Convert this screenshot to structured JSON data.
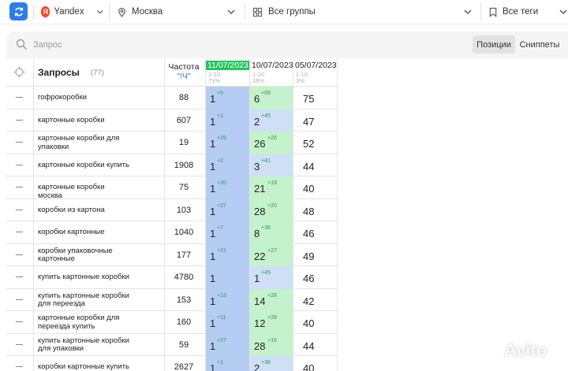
{
  "toolbar": {
    "search_engine": "Yandex",
    "search_engine_logo": "Я",
    "region": "Москва",
    "groups": "Все группы",
    "tags": "Все теги"
  },
  "search": {
    "placeholder": "Запрос"
  },
  "view_tabs": [
    {
      "label": "Позиции",
      "active": true
    },
    {
      "label": "Сниппеты",
      "active": false
    }
  ],
  "table": {
    "queries_header": "Запросы",
    "queries_count": "(77)",
    "freq_header": "Частота",
    "freq_sub": "\"!Ч\"",
    "dates": [
      {
        "date": "11/07/2023",
        "range": "1-10",
        "percent": "71%",
        "highlight": true
      },
      {
        "date": "10/07/2023",
        "range": "1-10",
        "percent": "18%",
        "highlight": false
      },
      {
        "date": "05/07/2023",
        "range": "1-10",
        "percent": "3%",
        "highlight": false
      }
    ],
    "rows": [
      {
        "query": "гофрокоробки",
        "freq": "88",
        "p1": "1",
        "d1": "+5",
        "p2": "6",
        "d2": "+69",
        "c2": "green",
        "p3": "75"
      },
      {
        "query": "картонные коробки",
        "freq": "607",
        "p1": "1",
        "d1": "+1",
        "p2": "2",
        "d2": "+45",
        "c2": "lblue",
        "p3": "47"
      },
      {
        "query": "картонные коробки для упаковки",
        "freq": "19",
        "p1": "1",
        "d1": "+25",
        "p2": "26",
        "d2": "+26",
        "c2": "green",
        "p3": "52"
      },
      {
        "query": "картонные коробки купить",
        "freq": "1908",
        "p1": "1",
        "d1": "+2",
        "p2": "3",
        "d2": "+41",
        "c2": "lblue",
        "p3": "44"
      },
      {
        "query": "картонные коробки москва",
        "freq": "75",
        "p1": "1",
        "d1": "+20",
        "p2": "21",
        "d2": "+19",
        "c2": "green",
        "p3": "40"
      },
      {
        "query": "коробки из картона",
        "freq": "103",
        "p1": "1",
        "d1": "+27",
        "p2": "28",
        "d2": "+20",
        "c2": "green",
        "p3": "48"
      },
      {
        "query": "коробки картонные",
        "freq": "1040",
        "p1": "1",
        "d1": "+7",
        "p2": "8",
        "d2": "+38",
        "c2": "green",
        "p3": "46"
      },
      {
        "query": "коробки упаковочные картонные",
        "freq": "177",
        "p1": "1",
        "d1": "+21",
        "p2": "22",
        "d2": "+27",
        "c2": "green",
        "p3": "49"
      },
      {
        "query": "купить картонные коробки",
        "freq": "4780",
        "p1": "1",
        "d1": "",
        "p2": "1",
        "d2": "+45",
        "c2": "lblue",
        "p3": "46"
      },
      {
        "query": "купить картонные коробки для переезда",
        "freq": "153",
        "p1": "1",
        "d1": "+13",
        "p2": "14",
        "d2": "+28",
        "c2": "green",
        "p3": "42"
      },
      {
        "query": "картонные коробки для переезда купить",
        "freq": "160",
        "p1": "1",
        "d1": "+11",
        "p2": "12",
        "d2": "+28",
        "c2": "green",
        "p3": "40"
      },
      {
        "query": "купить картонные коробки для упаковки",
        "freq": "59",
        "p1": "1",
        "d1": "+27",
        "p2": "28",
        "d2": "+16",
        "c2": "green",
        "p3": "44"
      },
      {
        "query": "коробки картонные купить",
        "freq": "2627",
        "p1": "1",
        "d1": "+1",
        "p2": "2",
        "d2": "+38",
        "c2": "lblue",
        "p3": "40"
      }
    ]
  },
  "watermark": {
    "text": "Avito"
  },
  "colors": {
    "accent": "#2b7de9",
    "highlight_date": "#22c55e",
    "pos_blue": "#b6cdf3",
    "pos_green": "#c4f2cc",
    "delta_green": "#1aa34a"
  }
}
